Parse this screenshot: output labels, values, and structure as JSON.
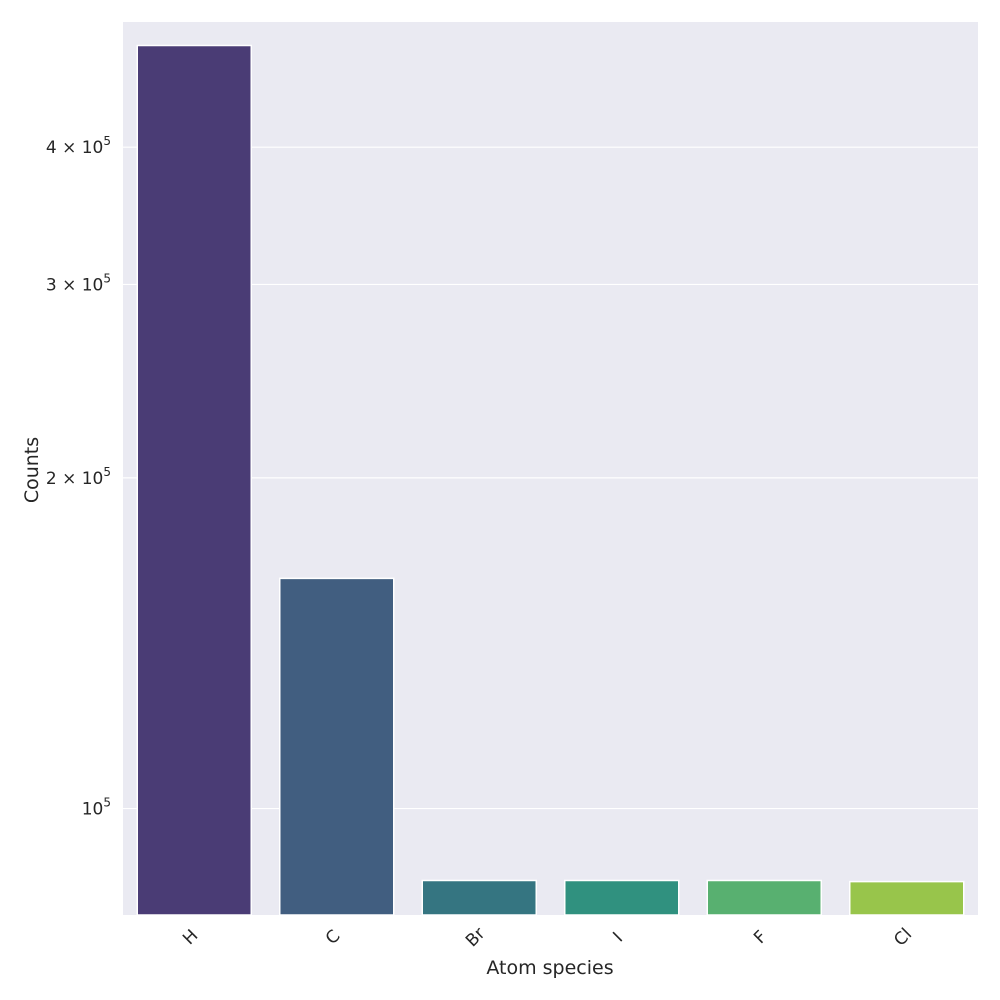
{
  "chart_data": {
    "type": "bar",
    "title": "",
    "xlabel": "Atom species",
    "ylabel": "Counts",
    "yscale": "log",
    "ylim": [
      80000,
      520000
    ],
    "grid": true,
    "categories": [
      "H",
      "C",
      "Br",
      "I",
      "F",
      "Cl"
    ],
    "values": [
      495000,
      162000,
      86000,
      86000,
      86000,
      85800
    ],
    "colors": [
      "#4a3c75",
      "#415e80",
      "#357581",
      "#30917f",
      "#58b070",
      "#98c54b"
    ],
    "yticks": [
      {
        "value": 100000,
        "base": "10",
        "exp": "5"
      },
      {
        "value": 200000,
        "base": "2 × 10",
        "exp": "5"
      },
      {
        "value": 300000,
        "base": "3 × 10",
        "exp": "5"
      },
      {
        "value": 400000,
        "base": "4 × 10",
        "exp": "5"
      }
    ]
  }
}
